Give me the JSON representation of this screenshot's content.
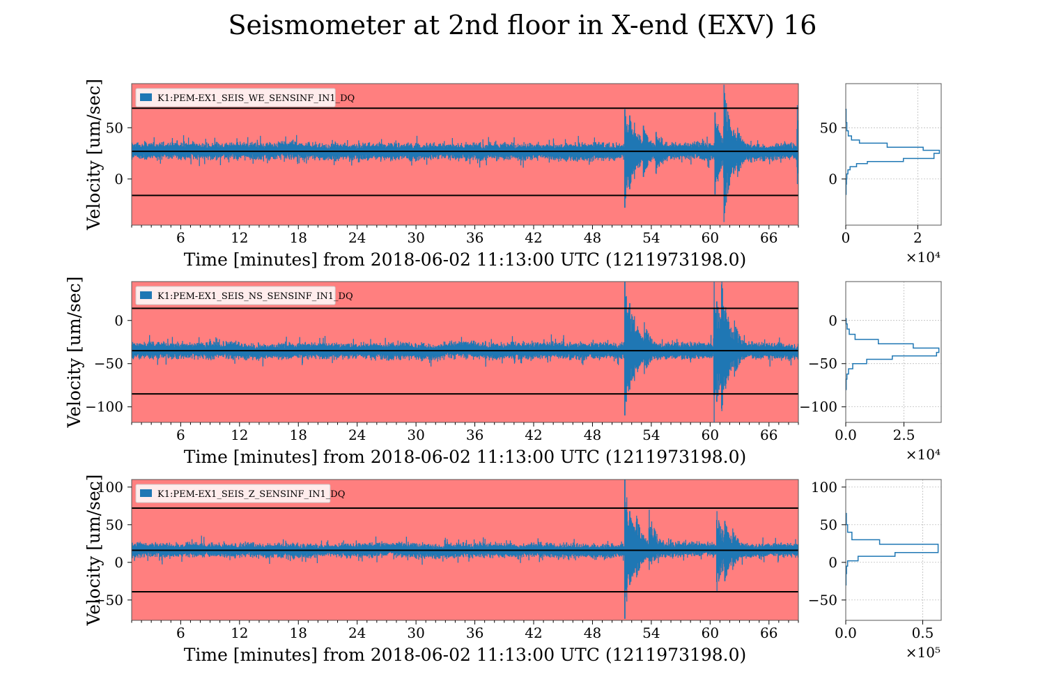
{
  "title": "Seismometer at 2nd floor in X-end (EXV) 16",
  "colors": {
    "background": "#ff7f7f",
    "trace": "#1f77b4",
    "threshold": "#000000",
    "grid": "#b0b0b0"
  },
  "chart_data": [
    {
      "type": "line",
      "legend": "K1:PEM-EX1_SEIS_WE_SENSINF_IN1_DQ",
      "xlabel": "Time [minutes] from 2018-06-02 11:13:00 UTC (1211973198.0)",
      "ylabel": "Velocity [um/sec]",
      "xlim": [
        1,
        69
      ],
      "ylim": [
        -45,
        93
      ],
      "xticks": [
        6,
        12,
        18,
        24,
        30,
        36,
        42,
        48,
        54,
        60,
        66
      ],
      "yticks": [
        0,
        50
      ],
      "thresholds": [
        69,
        27,
        -16
      ],
      "baseline": 27,
      "quiet_noise": 6,
      "events": [
        {
          "t": 51.3,
          "low": -28,
          "high": 68
        },
        {
          "t": 51.8,
          "low": -10,
          "high": 62
        },
        {
          "t": 52.3,
          "low": 0,
          "high": 55
        },
        {
          "t": 53.2,
          "low": 2,
          "high": 52
        },
        {
          "t": 54.5,
          "low": 5,
          "high": 46
        },
        {
          "t": 60.5,
          "low": -15,
          "high": 65
        },
        {
          "t": 61.4,
          "low": -42,
          "high": 92
        },
        {
          "t": 62.8,
          "low": 2,
          "high": 50
        },
        {
          "t": 68.9,
          "low": -5,
          "high": 72
        }
      ],
      "hist": {
        "x_label": "×10⁴",
        "x_scale": 10000,
        "xlim": [
          0,
          2.65
        ],
        "xticks": [
          0,
          2
        ],
        "xtick_labels": [
          "0",
          "2"
        ],
        "bins": [
          {
            "y": -15,
            "count": 0.01
          },
          {
            "y": -5,
            "count": 0.02
          },
          {
            "y": 0,
            "count": 0.03
          },
          {
            "y": 5,
            "count": 0.06
          },
          {
            "y": 9,
            "count": 0.12
          },
          {
            "y": 12,
            "count": 0.3
          },
          {
            "y": 15,
            "count": 0.6
          },
          {
            "y": 17,
            "count": 1.6
          },
          {
            "y": 20,
            "count": 2.45
          },
          {
            "y": 25,
            "count": 2.6
          },
          {
            "y": 28,
            "count": 2.15
          },
          {
            "y": 31,
            "count": 1.15
          },
          {
            "y": 35,
            "count": 0.38
          },
          {
            "y": 38,
            "count": 0.16
          },
          {
            "y": 42,
            "count": 0.07
          },
          {
            "y": 47,
            "count": 0.03
          },
          {
            "y": 55,
            "count": 0.01
          },
          {
            "y": 68,
            "count": 0.0
          }
        ]
      }
    },
    {
      "type": "line",
      "legend": "K1:PEM-EX1_SEIS_NS_SENSINF_IN1_DQ",
      "xlabel": "Time [minutes] from 2018-06-02 11:13:00 UTC (1211973198.0)",
      "ylabel": "Velocity [um/sec]",
      "xlim": [
        1,
        69
      ],
      "ylim": [
        -118,
        45
      ],
      "xticks": [
        6,
        12,
        18,
        24,
        30,
        36,
        42,
        48,
        54,
        60,
        66
      ],
      "yticks": [
        -100,
        -50,
        0
      ],
      "thresholds": [
        14,
        -35,
        -85
      ],
      "baseline": -35,
      "quiet_noise": 7,
      "events": [
        {
          "t": 51.3,
          "low": -110,
          "high": 45
        },
        {
          "t": 51.8,
          "low": -80,
          "high": 20
        },
        {
          "t": 52.3,
          "low": -70,
          "high": 5
        },
        {
          "t": 53.3,
          "low": -62,
          "high": -2
        },
        {
          "t": 60.4,
          "low": -118,
          "high": 45
        },
        {
          "t": 61.2,
          "low": -105,
          "high": 45
        },
        {
          "t": 62.5,
          "low": -65,
          "high": 0
        }
      ],
      "hist": {
        "x_label": "×10⁴",
        "x_scale": 10000,
        "xlim": [
          0,
          4.1
        ],
        "xticks": [
          0,
          2.5
        ],
        "xtick_labels": [
          "0.0",
          "2.5"
        ],
        "bins": [
          {
            "y": -80,
            "count": 0.02
          },
          {
            "y": -68,
            "count": 0.05
          },
          {
            "y": -62,
            "count": 0.12
          },
          {
            "y": -56,
            "count": 0.3
          },
          {
            "y": -50,
            "count": 0.9
          },
          {
            "y": -45,
            "count": 2.0
          },
          {
            "y": -41,
            "count": 3.9
          },
          {
            "y": -37,
            "count": 4.0
          },
          {
            "y": -32,
            "count": 2.9
          },
          {
            "y": -27,
            "count": 1.4
          },
          {
            "y": -22,
            "count": 0.4
          },
          {
            "y": -16,
            "count": 0.15
          },
          {
            "y": -10,
            "count": 0.06
          },
          {
            "y": -4,
            "count": 0.02
          },
          {
            "y": 2,
            "count": 0.0
          }
        ]
      }
    },
    {
      "type": "line",
      "legend": "K1:PEM-EX1_SEIS_Z_SENSINF_IN1_DQ",
      "xlabel": "Time [minutes] from 2018-06-02 11:13:00 UTC (1211973198.0)",
      "ylabel": "Velocity [um/sec]",
      "xlim": [
        1,
        69
      ],
      "ylim": [
        -77,
        110
      ],
      "xticks": [
        6,
        12,
        18,
        24,
        30,
        36,
        42,
        48,
        54,
        60,
        66
      ],
      "yticks": [
        -50,
        0,
        50,
        100
      ],
      "thresholds": [
        72,
        16,
        -39
      ],
      "baseline": 16,
      "quiet_noise": 7,
      "events": [
        {
          "t": 51.3,
          "low": -75,
          "high": 110
        },
        {
          "t": 51.8,
          "low": -30,
          "high": 68
        },
        {
          "t": 52.5,
          "low": -20,
          "high": 62
        },
        {
          "t": 53.8,
          "low": -10,
          "high": 70
        },
        {
          "t": 60.7,
          "low": -38,
          "high": 68
        },
        {
          "t": 61.5,
          "low": -25,
          "high": 55
        },
        {
          "t": 62.3,
          "low": -10,
          "high": 45
        }
      ],
      "hist": {
        "x_label": "×10⁵",
        "x_scale": 100000,
        "xlim": [
          0,
          0.62
        ],
        "xticks": [
          0,
          0.5
        ],
        "xtick_labels": [
          "0.0",
          "0.5"
        ],
        "bins": [
          {
            "y": -30,
            "count": 0.002
          },
          {
            "y": -15,
            "count": 0.005
          },
          {
            "y": -5,
            "count": 0.012
          },
          {
            "y": 2,
            "count": 0.08
          },
          {
            "y": 8,
            "count": 0.32
          },
          {
            "y": 13,
            "count": 0.6
          },
          {
            "y": 18,
            "count": 0.6
          },
          {
            "y": 24,
            "count": 0.22
          },
          {
            "y": 30,
            "count": 0.04
          },
          {
            "y": 40,
            "count": 0.012
          },
          {
            "y": 50,
            "count": 0.004
          },
          {
            "y": 65,
            "count": 0.001
          }
        ]
      }
    }
  ]
}
